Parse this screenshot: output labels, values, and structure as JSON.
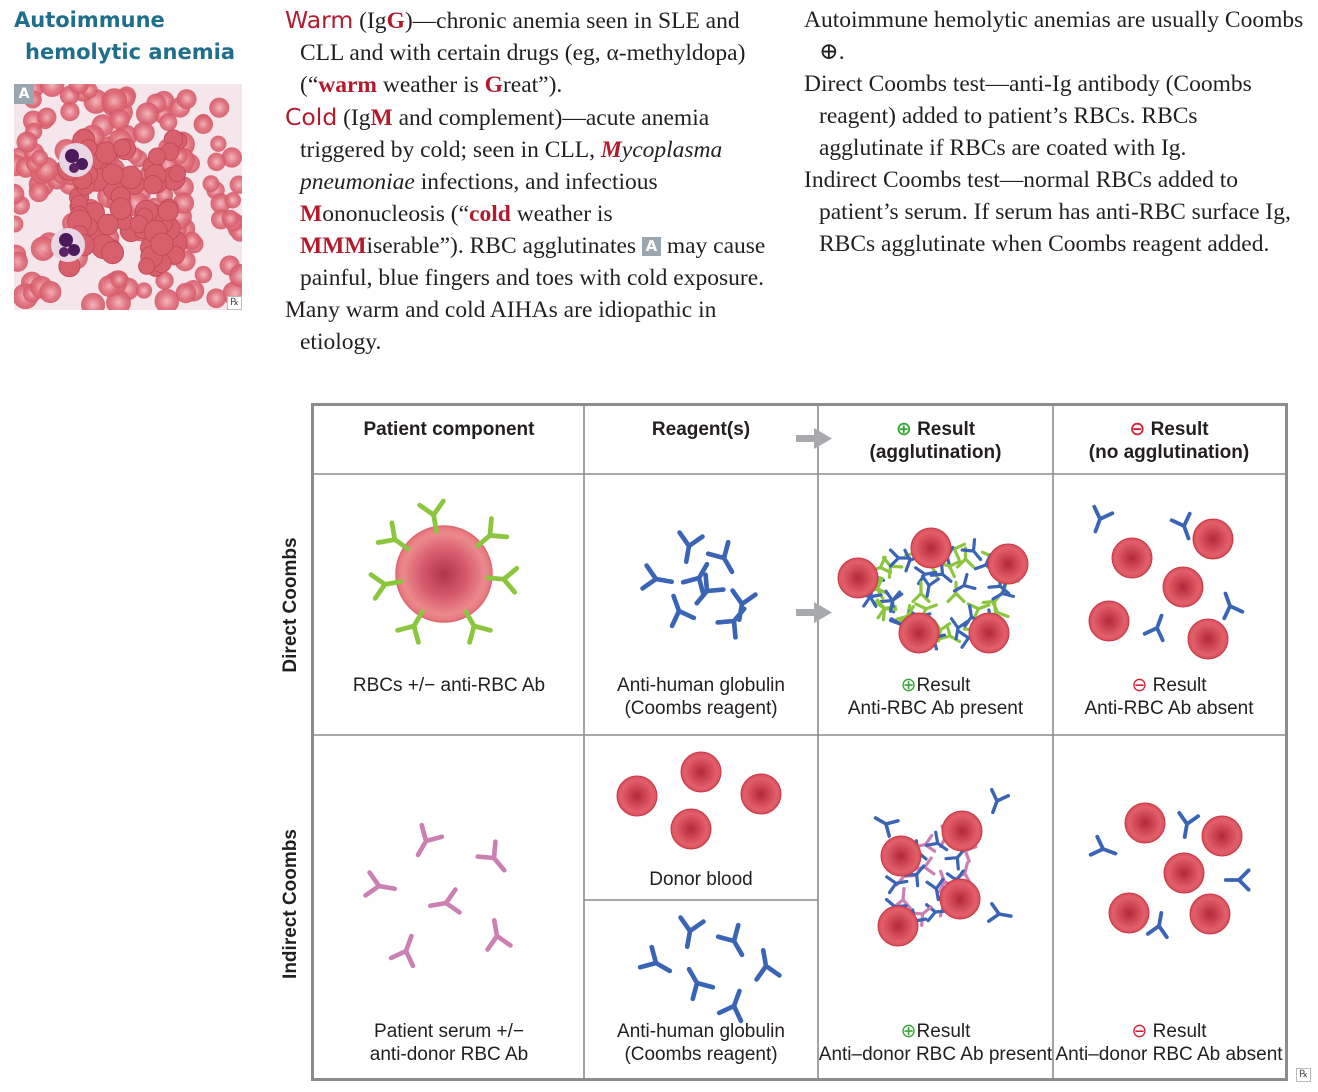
{
  "topic": {
    "line1": "Autoimmune",
    "line2": "hemolytic anemia"
  },
  "image_badge": "A",
  "rx_mark": "℞",
  "warm": {
    "label": "Warm",
    "ig_prefix": " (Ig",
    "ig_letter": "G",
    "text1": ")—chronic anemia seen in SLE and CLL and with certain drugs (eg, α-methyldopa) (“",
    "mnemonic_word": "warm",
    "text2": " weather is ",
    "mnemonic_letter": "G",
    "text3": "reat”)."
  },
  "cold": {
    "label": "Cold",
    "ig_prefix": " (Ig",
    "ig_letter": "M",
    "text1": " and complement)—acute anemia triggered by cold; seen in CLL, ",
    "organism_first": "M",
    "organism_rest": "ycoplasma pneumoniae",
    "text2": " infections, and infectious ",
    "mono_letter": "M",
    "mono_rest": "ononucleosis (“",
    "mnemonic_word": "cold",
    "text3": " weather is ",
    "mnemonic_letters": "MMM",
    "text4": "iserable”). RBC agglutinates ",
    "badge": "A",
    "text5": " may cause painful, blue fingers and toes with cold exposure."
  },
  "idiopathic": "Many warm and cold AIHAs are idiopathic in etiology.",
  "right_col": {
    "p1": "Autoimmune hemolytic anemias are usually Coombs ⊕.",
    "p2": "Direct Coombs test—anti-Ig antibody (Coombs reagent) added to patient’s RBCs. RBCs agglutinate if RBCs are coated with Ig.",
    "p3": "Indirect Coombs test—normal RBCs added to patient’s serum. If serum has anti-RBC surface Ig, RBCs agglutinate when Coombs reagent added."
  },
  "diagram": {
    "headers": {
      "patient": "Patient component",
      "reagent": "Reagent(s)",
      "pos_symbol": "⊕",
      "pos_line1": "Result",
      "pos_line2": "(agglutination)",
      "neg_symbol": "⊖",
      "neg_line1": "Result",
      "neg_line2": "(no agglutination)"
    },
    "rows": {
      "direct": {
        "label": "Direct Coombs",
        "patient": "RBCs +/− anti-RBC Ab",
        "reagent_line1": "Anti-human globulin",
        "reagent_line2": "(Coombs reagent)",
        "pos_symbol": "⊕",
        "pos_line1": "Result",
        "pos_line2": "Anti-RBC Ab present",
        "neg_symbol": "⊖",
        "neg_line1": "Result",
        "neg_line2": "Anti-RBC Ab absent"
      },
      "indirect": {
        "label": "Indirect Coombs",
        "patient_line1": "Patient serum +/−",
        "patient_line2": "anti-donor RBC Ab",
        "donor": "Donor blood",
        "reagent_line1": "Anti-human globulin",
        "reagent_line2": "(Coombs reagent)",
        "pos_symbol": "⊕",
        "pos_line1": "Result",
        "pos_line2": "Anti–donor RBC Ab present",
        "neg_symbol": "⊖",
        "neg_line1": "Result",
        "neg_line2": "Anti–donor RBC Ab absent"
      }
    },
    "colors": {
      "rbc": "#d9414f",
      "rbc_center": "#b8303f",
      "anti_rbc_ab": "#8cc63f",
      "coombs_reagent": "#3a64b5",
      "patient_serum_ab": "#cc7fb2",
      "arrow": "#a7a9ac",
      "grid": "#8c8c8c"
    }
  }
}
